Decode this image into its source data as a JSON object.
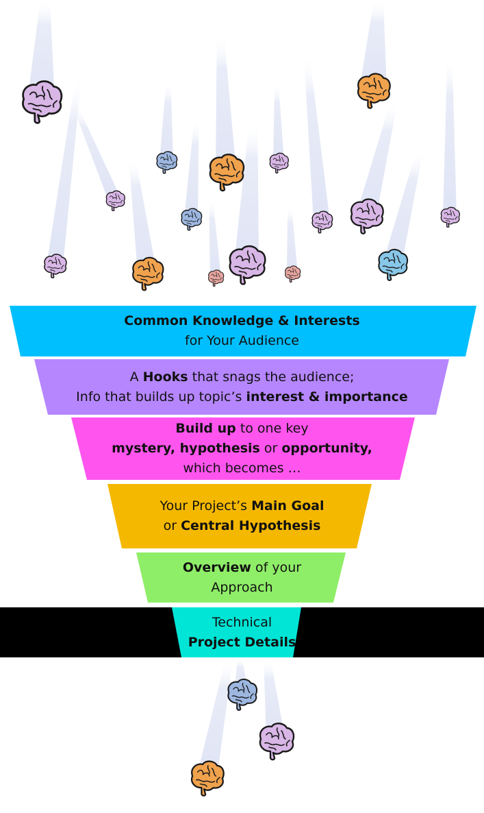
{
  "colors": {
    "beam": "#e8ebf7",
    "black_bar": "#000000",
    "brain_outline": "#1a1a1a",
    "brain_fills": [
      "#d8b6e6",
      "#f0a24d",
      "#9db7e0",
      "#88c7e8",
      "#e7a6a0"
    ]
  },
  "icons": {
    "brain": "brain-icon",
    "light_beam": "light-beam"
  },
  "bands": [
    {
      "id": "common-knowledge",
      "color": "#00bfff",
      "lines": [
        [
          {
            "t": "Common Knowledge & Interests",
            "b": true
          }
        ],
        [
          {
            "t": "for Your Audience",
            "b": false
          }
        ]
      ]
    },
    {
      "id": "hooks",
      "color": "#b686ff",
      "lines": [
        [
          {
            "t": "A ",
            "b": false
          },
          {
            "t": "Hooks",
            "b": true
          },
          {
            "t": " that snags the audience;",
            "b": false
          }
        ],
        [
          {
            "t": "Info that builds up topic’s ",
            "b": false
          },
          {
            "t": "interest & importance",
            "b": true
          }
        ]
      ]
    },
    {
      "id": "build-up",
      "color": "#ff55ee",
      "lines": [
        [
          {
            "t": "Build up",
            "b": true
          },
          {
            "t": " to one key",
            "b": false
          }
        ],
        [
          {
            "t": "mystery, hypothesis",
            "b": true
          },
          {
            "t": " or ",
            "b": false
          },
          {
            "t": "opportunity,",
            "b": true
          }
        ],
        [
          {
            "t": "which becomes …",
            "b": false
          }
        ]
      ]
    },
    {
      "id": "main-goal",
      "color": "#f5b800",
      "lines": [
        [
          {
            "t": "Your Project’s ",
            "b": false
          },
          {
            "t": "Main Goal",
            "b": true
          }
        ],
        [
          {
            "t": "or ",
            "b": false
          },
          {
            "t": "Central Hypothesis",
            "b": true
          }
        ]
      ]
    },
    {
      "id": "overview",
      "color": "#8fee68",
      "lines": [
        [
          {
            "t": "Overview",
            "b": true
          },
          {
            "t": " of your",
            "b": false
          }
        ],
        [
          {
            "t": "Approach",
            "b": false
          }
        ]
      ]
    },
    {
      "id": "technical",
      "color": "#00e5d6",
      "lines": [
        [
          {
            "t": "Technical",
            "b": false
          }
        ],
        [
          {
            "t": "Project  Details",
            "b": true
          }
        ]
      ]
    }
  ]
}
